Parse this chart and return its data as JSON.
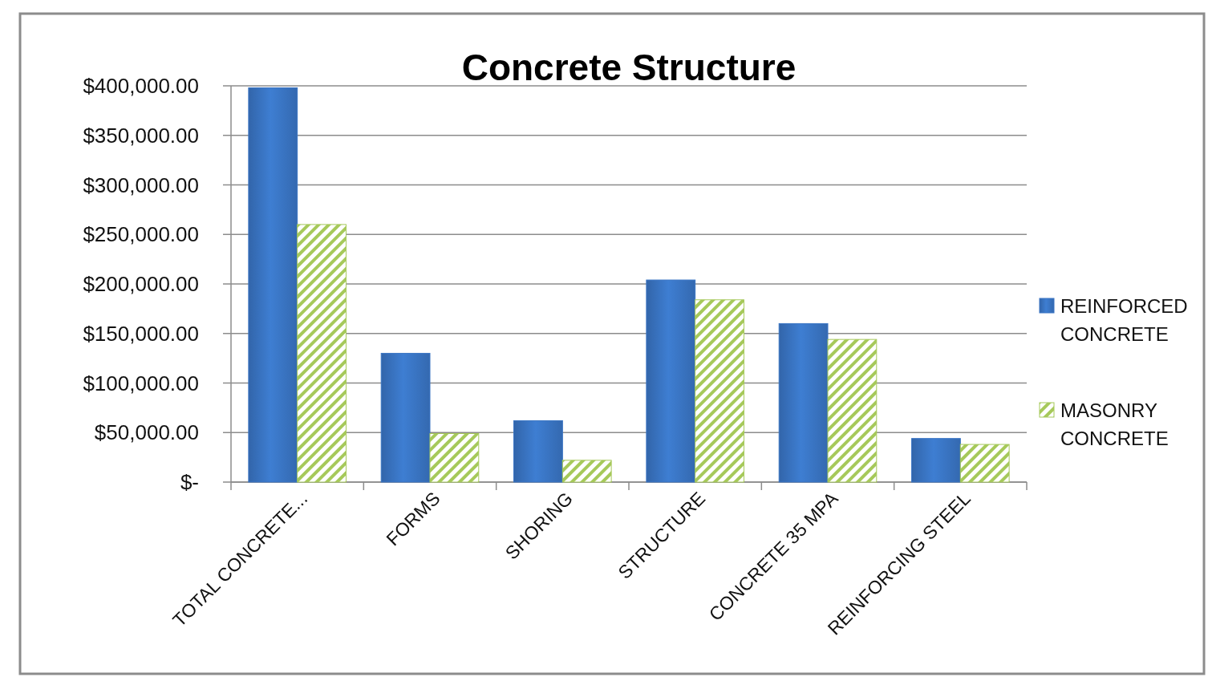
{
  "chart_data": {
    "type": "bar",
    "title": "Concrete Structure",
    "categories": [
      "TOTAL CONCRETE...",
      "FORMS",
      "SHORING",
      "STRUCTURE",
      "CONCRETE 35 MPA",
      "REINFORCING STEEL"
    ],
    "series": [
      {
        "name": "REINFORCED CONCRETE",
        "color": "#3a75c4",
        "values": [
          398000,
          130000,
          62000,
          204000,
          160000,
          44000
        ]
      },
      {
        "name": "MASONRY CONCRETE",
        "color": "#a6c95a",
        "values": [
          260000,
          49000,
          22000,
          184000,
          144000,
          38000
        ]
      }
    ],
    "ylim": [
      0,
      400000
    ],
    "yticks": [
      {
        "value": 0,
        "label": "$-"
      },
      {
        "value": 50000,
        "label": "$50,000.00"
      },
      {
        "value": 100000,
        "label": "$100,000.00"
      },
      {
        "value": 150000,
        "label": "$150,000.00"
      },
      {
        "value": 200000,
        "label": "$200,000.00"
      },
      {
        "value": 250000,
        "label": "$250,000.00"
      },
      {
        "value": 300000,
        "label": "$300,000.00"
      },
      {
        "value": 350000,
        "label": "$350,000.00"
      },
      {
        "value": 400000,
        "label": "$400,000.00"
      }
    ],
    "grid": "y",
    "legend": "right"
  }
}
